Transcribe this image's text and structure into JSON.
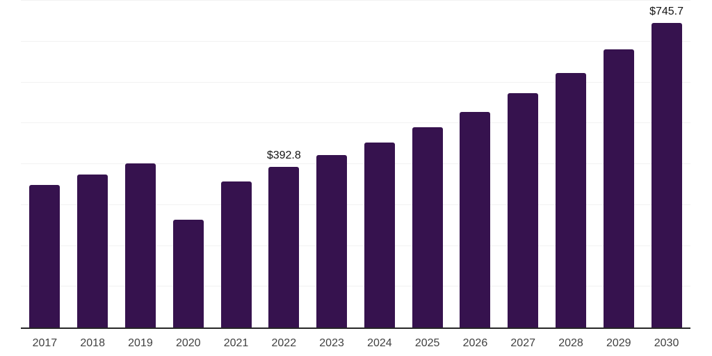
{
  "chart_data": {
    "type": "bar",
    "title": "",
    "xlabel": "",
    "ylabel": "",
    "categories": [
      "2017",
      "2018",
      "2019",
      "2020",
      "2021",
      "2022",
      "2023",
      "2024",
      "2025",
      "2026",
      "2027",
      "2028",
      "2029",
      "2030"
    ],
    "values": [
      349.1,
      374.2,
      402.5,
      264.7,
      357.0,
      392.8,
      422.4,
      452.5,
      489.5,
      527.3,
      573.0,
      622.9,
      680.7,
      745.7
    ],
    "data_labels": [
      "",
      "",
      "",
      "",
      "",
      "$392.8",
      "",
      "",
      "",
      "",
      "",
      "",
      "",
      "$745.7"
    ],
    "ylim": [
      0,
      800
    ],
    "grid_step": 100,
    "grid": true,
    "legend": "none",
    "colors": {
      "bar": "#36124E",
      "axis": "#262626",
      "grid": "#f2f2f2",
      "value_label": "#141414",
      "tick_label": "#404040",
      "background": "#ffffff"
    }
  }
}
